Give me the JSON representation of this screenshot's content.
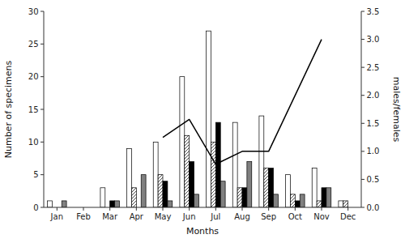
{
  "chart_data": {
    "type": "bar",
    "xlabel": "Months",
    "ylabel": "Number of specimens",
    "y2label": "males/females",
    "categories": [
      "Jan",
      "Feb",
      "Mar",
      "Apr",
      "May",
      "Jun",
      "Jul",
      "Aug",
      "Sep",
      "Oct",
      "Nov",
      "Dec"
    ],
    "series": [
      {
        "color": "#ffffff",
        "values": [
          1,
          0,
          3,
          9,
          10,
          20,
          27,
          13,
          14,
          5,
          6,
          1
        ]
      },
      {
        "color": "#ffffff",
        "values": [
          0,
          0,
          0,
          3,
          5,
          11,
          10,
          3,
          6,
          2,
          1,
          1
        ]
      },
      {
        "color": "#000000",
        "values": [
          0,
          0,
          1,
          0,
          4,
          7,
          13,
          3,
          6,
          1,
          3,
          0
        ]
      },
      {
        "color": "#808080",
        "values": [
          1,
          0,
          1,
          5,
          1,
          2,
          4,
          7,
          2,
          2,
          3,
          0
        ]
      },
      {
        "type": "line",
        "axis": "y2",
        "color": "#000000",
        "x": [
          "May",
          "Jun",
          "Jul",
          "Aug",
          "Sep",
          "Nov"
        ],
        "values": [
          1.25,
          1.57,
          0.77,
          1.0,
          1.0,
          3.0
        ]
      }
    ],
    "ylim": [
      0,
      30
    ],
    "yticks": [
      0,
      5,
      10,
      15,
      20,
      25,
      30
    ],
    "y2lim": [
      0,
      3.5
    ],
    "y2ticks": [
      {
        "value": 0,
        "label": "0.0"
      },
      0.5,
      {
        "value": 1.0,
        "label": "1.0"
      },
      1.5,
      {
        "value": 2.0,
        "label": "2.0"
      },
      2.5,
      {
        "value": 3.0,
        "label": "3.0"
      },
      3.5
    ],
    "grid": false
  }
}
